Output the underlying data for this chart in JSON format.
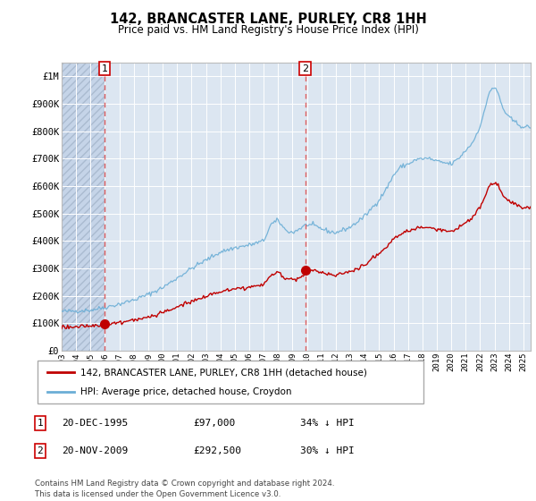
{
  "title": "142, BRANCASTER LANE, PURLEY, CR8 1HH",
  "subtitle": "Price paid vs. HM Land Registry's House Price Index (HPI)",
  "legend_line1": "142, BRANCASTER LANE, PURLEY, CR8 1HH (detached house)",
  "legend_line2": "HPI: Average price, detached house, Croydon",
  "footer": "Contains HM Land Registry data © Crown copyright and database right 2024.\nThis data is licensed under the Open Government Licence v3.0.",
  "table_rows": [
    {
      "num": "1",
      "date": "20-DEC-1995",
      "price": "£97,000",
      "note": "34% ↓ HPI"
    },
    {
      "num": "2",
      "date": "20-NOV-2009",
      "price": "£292,500",
      "note": "30% ↓ HPI"
    }
  ],
  "sale1_year": 1995.97,
  "sale1_value": 97000,
  "sale2_year": 2009.89,
  "sale2_value": 292500,
  "hpi_color": "#6baed6",
  "price_color": "#c00000",
  "dashed_color": "#e06060",
  "background_plot": "#dce6f1",
  "background_hatch": "#c5d4e8",
  "ylim": [
    0,
    1050000
  ],
  "xlim_start": 1993.0,
  "xlim_end": 2025.5,
  "ylabel_ticks": [
    0,
    100000,
    200000,
    300000,
    400000,
    500000,
    600000,
    700000,
    800000,
    900000,
    1000000
  ],
  "ylabel_labels": [
    "£0",
    "£100K",
    "£200K",
    "£300K",
    "£400K",
    "£500K",
    "£600K",
    "£700K",
    "£800K",
    "£900K",
    "£1M"
  ]
}
